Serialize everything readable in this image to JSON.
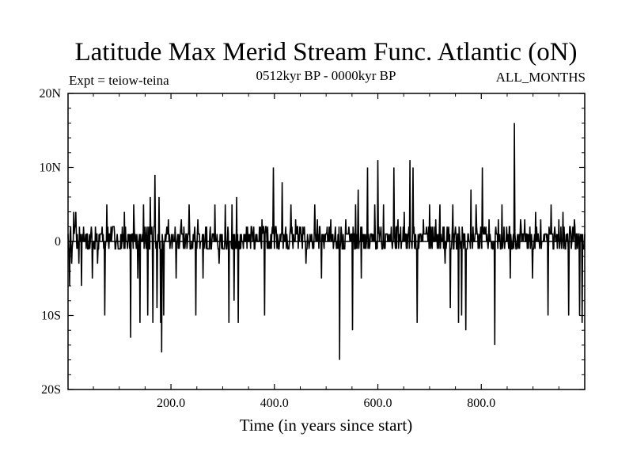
{
  "chart_data": {
    "type": "line",
    "title": "Latitude Max Merid Stream Func. Atlantic (oN)",
    "experiment": "Expt = teiow-teina",
    "period": "0512kyr BP - 0000kyr BP",
    "months": "ALL_MONTHS",
    "xlabel": "Time (in years since start)",
    "ylabel": "",
    "xlim": [
      1,
      1000
    ],
    "ylim": [
      -20,
      20
    ],
    "x_ticks": [
      {
        "value": 200,
        "label": "200.0"
      },
      {
        "value": 400,
        "label": "400.0"
      },
      {
        "value": 600,
        "label": "600.0"
      },
      {
        "value": 800,
        "label": "800.0"
      }
    ],
    "y_ticks": [
      {
        "value": 20,
        "label": "20N"
      },
      {
        "value": 10,
        "label": "10N"
      },
      {
        "value": 0,
        "label": "0"
      },
      {
        "value": -10,
        "label": "10S"
      },
      {
        "value": -20,
        "label": "20S"
      }
    ],
    "baseline_values": [
      -1,
      0,
      1,
      2,
      -1,
      0,
      1,
      0,
      -1,
      1,
      2,
      1,
      0,
      -1,
      0,
      1
    ],
    "spikes": [
      {
        "x": 4,
        "y": -6
      },
      {
        "x": 8,
        "y": -3
      },
      {
        "x": 12,
        "y": 4
      },
      {
        "x": 16,
        "y": 4
      },
      {
        "x": 22,
        "y": -3
      },
      {
        "x": 27,
        "y": -6
      },
      {
        "x": 48,
        "y": -5
      },
      {
        "x": 58,
        "y": -3
      },
      {
        "x": 72,
        "y": -10
      },
      {
        "x": 76,
        "y": 5
      },
      {
        "x": 110,
        "y": 4
      },
      {
        "x": 122,
        "y": -13
      },
      {
        "x": 128,
        "y": 5
      },
      {
        "x": 136,
        "y": -5
      },
      {
        "x": 140,
        "y": -11
      },
      {
        "x": 147,
        "y": 5
      },
      {
        "x": 155,
        "y": -10
      },
      {
        "x": 160,
        "y": 6
      },
      {
        "x": 165,
        "y": -11
      },
      {
        "x": 169,
        "y": 9
      },
      {
        "x": 173,
        "y": -9
      },
      {
        "x": 177,
        "y": 6
      },
      {
        "x": 180,
        "y": -11
      },
      {
        "x": 182,
        "y": -15
      },
      {
        "x": 186,
        "y": -10
      },
      {
        "x": 195,
        "y": 3
      },
      {
        "x": 210,
        "y": -5
      },
      {
        "x": 220,
        "y": 3
      },
      {
        "x": 235,
        "y": 5
      },
      {
        "x": 248,
        "y": -10
      },
      {
        "x": 252,
        "y": 3
      },
      {
        "x": 262,
        "y": -5
      },
      {
        "x": 285,
        "y": 5
      },
      {
        "x": 293,
        "y": -3
      },
      {
        "x": 305,
        "y": 5
      },
      {
        "x": 312,
        "y": -11
      },
      {
        "x": 318,
        "y": 5
      },
      {
        "x": 322,
        "y": -8
      },
      {
        "x": 327,
        "y": 6
      },
      {
        "x": 330,
        "y": -11
      },
      {
        "x": 376,
        "y": 3
      },
      {
        "x": 381,
        "y": -10
      },
      {
        "x": 398,
        "y": 10
      },
      {
        "x": 415,
        "y": 8
      },
      {
        "x": 432,
        "y": 5
      },
      {
        "x": 441,
        "y": 3
      },
      {
        "x": 461,
        "y": -3
      },
      {
        "x": 478,
        "y": 5
      },
      {
        "x": 483,
        "y": 3
      },
      {
        "x": 491,
        "y": -5
      },
      {
        "x": 509,
        "y": 3
      },
      {
        "x": 526,
        "y": -16
      },
      {
        "x": 538,
        "y": 3
      },
      {
        "x": 551,
        "y": -12
      },
      {
        "x": 557,
        "y": 5
      },
      {
        "x": 562,
        "y": 7
      },
      {
        "x": 568,
        "y": -5
      },
      {
        "x": 580,
        "y": 10
      },
      {
        "x": 594,
        "y": 5
      },
      {
        "x": 600,
        "y": 11
      },
      {
        "x": 611,
        "y": 5
      },
      {
        "x": 631,
        "y": 10
      },
      {
        "x": 639,
        "y": 3
      },
      {
        "x": 651,
        "y": 4
      },
      {
        "x": 662,
        "y": 11
      },
      {
        "x": 668,
        "y": 10
      },
      {
        "x": 676,
        "y": -11
      },
      {
        "x": 688,
        "y": 3
      },
      {
        "x": 700,
        "y": 5
      },
      {
        "x": 712,
        "y": 3
      },
      {
        "x": 720,
        "y": 5
      },
      {
        "x": 730,
        "y": -3
      },
      {
        "x": 740,
        "y": -9
      },
      {
        "x": 745,
        "y": 5
      },
      {
        "x": 756,
        "y": -11
      },
      {
        "x": 762,
        "y": -10
      },
      {
        "x": 770,
        "y": -12
      },
      {
        "x": 780,
        "y": 7
      },
      {
        "x": 790,
        "y": 5
      },
      {
        "x": 802,
        "y": 10
      },
      {
        "x": 815,
        "y": 3
      },
      {
        "x": 826,
        "y": -14
      },
      {
        "x": 833,
        "y": 3
      },
      {
        "x": 840,
        "y": 5
      },
      {
        "x": 856,
        "y": -5
      },
      {
        "x": 864,
        "y": 16
      },
      {
        "x": 876,
        "y": 3
      },
      {
        "x": 884,
        "y": 3
      },
      {
        "x": 899,
        "y": -5
      },
      {
        "x": 905,
        "y": 4
      },
      {
        "x": 915,
        "y": 3
      },
      {
        "x": 929,
        "y": -10
      },
      {
        "x": 935,
        "y": 5
      },
      {
        "x": 950,
        "y": 3
      },
      {
        "x": 958,
        "y": 4
      },
      {
        "x": 969,
        "y": -10
      },
      {
        "x": 980,
        "y": 3
      },
      {
        "x": 990,
        "y": -10
      },
      {
        "x": 995,
        "y": -11
      }
    ]
  }
}
